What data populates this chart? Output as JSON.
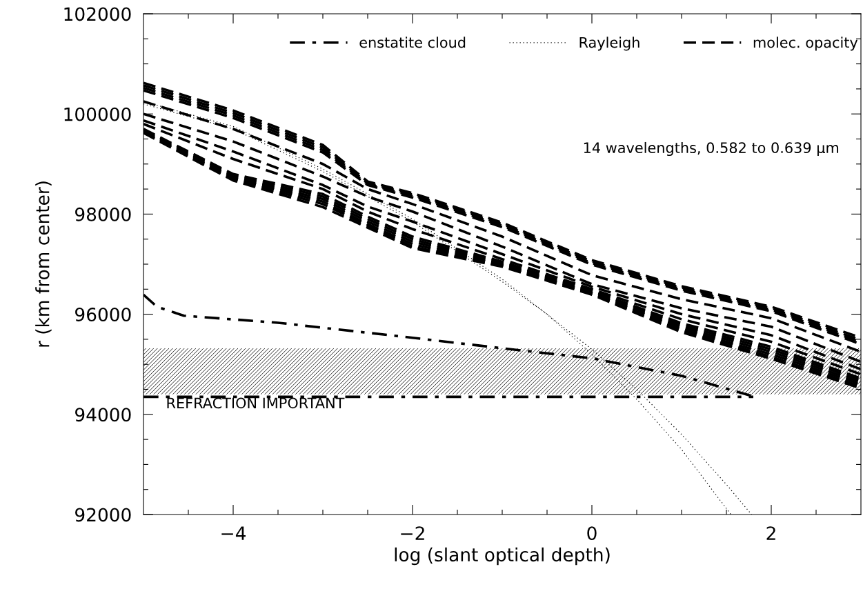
{
  "chart_data": {
    "type": "line",
    "xlabel": "log (slant optical depth)",
    "ylabel": "r (km from center)",
    "xlim": [
      -5,
      3
    ],
    "ylim": [
      92000,
      102000
    ],
    "xticks": [
      {
        "value": -4.5,
        "label": null
      },
      -4,
      {
        "value": -3.5,
        "label": null
      },
      {
        "value": -3,
        "label": null
      },
      {
        "value": -2.5,
        "label": null
      },
      -2,
      {
        "value": -1.5,
        "label": null
      },
      {
        "value": -1,
        "label": null
      },
      {
        "value": -0.5,
        "label": null
      },
      0,
      {
        "value": 0.5,
        "label": null
      },
      {
        "value": 1,
        "label": null
      },
      {
        "value": 1.5,
        "label": null
      },
      2,
      {
        "value": 2.5,
        "label": null
      }
    ],
    "yticks": [
      92000,
      {
        "value": 92500,
        "label": null
      },
      {
        "value": 93000,
        "label": null
      },
      {
        "value": 93500,
        "label": null
      },
      94000,
      {
        "value": 94500,
        "label": null
      },
      {
        "value": 95000,
        "label": null
      },
      {
        "value": 95500,
        "label": null
      },
      96000,
      {
        "value": 96500,
        "label": null
      },
      {
        "value": 97000,
        "label": null
      },
      {
        "value": 97500,
        "label": null
      },
      98000,
      {
        "value": 98500,
        "label": null
      },
      {
        "value": 99000,
        "label": null
      },
      {
        "value": 99500,
        "label": null
      },
      100000,
      {
        "value": 100500,
        "label": null
      },
      {
        "value": 101000,
        "label": null
      },
      {
        "value": 101500,
        "label": null
      },
      102000
    ],
    "grid": false,
    "legend": "top",
    "marker": "none",
    "x": [
      -5,
      -4,
      -3,
      -2.5,
      -2,
      -1,
      0,
      1,
      2,
      3
    ],
    "series": [
      {
        "name": "enstatite cloud",
        "color": "#000000",
        "line_style": "dashdot",
        "x": [
          -5,
          -4.85,
          -4.55,
          -3.5,
          -2,
          -1,
          0,
          1,
          1.8
        ],
        "values": [
          96390,
          96150,
          95970,
          95830,
          95530,
          95320,
          95120,
          94770,
          94360
        ]
      },
      {
        "color": "#000000",
        "line_style": "dashdot",
        "x": [
          -5,
          1.8
        ],
        "values": [
          94350,
          94350
        ]
      },
      {
        "name": "Rayleigh",
        "color": "#000000",
        "line_style": "dotted",
        "x": [
          -5,
          -4,
          -3,
          -2,
          -1.5,
          -1,
          -0.5,
          0,
          0.5,
          1,
          1.55
        ],
        "values": [
          100250,
          99750,
          98900,
          97900,
          97300,
          96700,
          96000,
          95200,
          94300,
          93300,
          92000
        ]
      },
      {
        "color": "#000000",
        "line_style": "dotted",
        "x": [
          -5,
          -4,
          -3,
          -2,
          -1.5,
          -1,
          -0.5,
          0,
          0.5,
          1,
          1.5,
          1.78
        ],
        "values": [
          100200,
          99700,
          98850,
          97850,
          97250,
          96650,
          96000,
          95300,
          94500,
          93600,
          92600,
          92000
        ]
      },
      {
        "name": "molec. opacity",
        "color": "#000000",
        "line_style": "dashed",
        "values": [
          100620,
          100070,
          99380,
          98650,
          98420,
          97830,
          97080,
          96560,
          96150,
          95530
        ]
      },
      {
        "color": "#000000",
        "line_style": "dashed",
        "values": [
          100570,
          100020,
          99330,
          98620,
          98390,
          97800,
          97050,
          96530,
          96120,
          95480
        ]
      },
      {
        "color": "#000000",
        "line_style": "dashed",
        "values": [
          100520,
          99970,
          99280,
          98600,
          98360,
          97770,
          97020,
          96500,
          96090,
          95440
        ]
      },
      {
        "color": "#000000",
        "line_style": "dashed",
        "values": [
          100470,
          99920,
          99230,
          98580,
          98330,
          97740,
          96990,
          96470,
          96060,
          95400
        ]
      },
      {
        "color": "#000000",
        "line_style": "dashed",
        "values": [
          100250,
          99700,
          99000,
          98500,
          98200,
          97550,
          96780,
          96300,
          95920,
          95250
        ]
      },
      {
        "color": "#000000",
        "line_style": "dashed",
        "values": [
          100000,
          99450,
          98750,
          98350,
          98050,
          97350,
          96600,
          96120,
          95750,
          95050
        ]
      },
      {
        "color": "#000000",
        "line_style": "dashed",
        "values": [
          99870,
          99250,
          98580,
          98150,
          97850,
          97200,
          96550,
          96000,
          95580,
          94900
        ]
      },
      {
        "color": "#000000",
        "line_style": "dashed",
        "values": [
          99800,
          99100,
          98500,
          98050,
          97700,
          97100,
          96500,
          95900,
          95450,
          94800
        ]
      },
      {
        "color": "#000000",
        "line_style": "dashed",
        "values": [
          99700,
          98800,
          98400,
          97950,
          97550,
          97050,
          96470,
          95820,
          95350,
          94720
        ]
      },
      {
        "color": "#000000",
        "line_style": "dashed",
        "values": [
          99680,
          98770,
          98350,
          97900,
          97500,
          97020,
          96450,
          95780,
          95300,
          94680
        ]
      },
      {
        "color": "#000000",
        "line_style": "dashed",
        "values": [
          99660,
          98740,
          98300,
          97850,
          97450,
          97000,
          96430,
          95740,
          95250,
          94640
        ]
      },
      {
        "color": "#000000",
        "line_style": "dashed",
        "values": [
          99640,
          98720,
          98250,
          97800,
          97400,
          96980,
          96420,
          95700,
          95200,
          94600
        ]
      },
      {
        "color": "#000000",
        "line_style": "dashed",
        "values": [
          99630,
          98690,
          98200,
          97770,
          97350,
          96960,
          96410,
          95670,
          95150,
          94560
        ]
      },
      {
        "color": "#000000",
        "line_style": "dashed",
        "values": [
          99620,
          98670,
          98140,
          97730,
          97320,
          96950,
          96390,
          95640,
          95110,
          94520
        ]
      }
    ],
    "bands": [
      {
        "axis": "y",
        "from": 94400,
        "to": 95320,
        "label": "REFRACTION IMPORTANT",
        "color": "#000000"
      }
    ],
    "annotations": [
      "14 wavelengths, 0.582 to 0.639 μm"
    ]
  }
}
